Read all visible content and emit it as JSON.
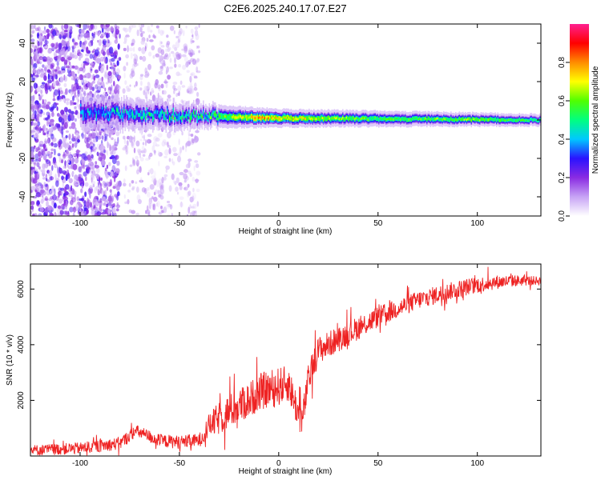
{
  "title": "C2E6.2025.240.17.07.E27",
  "chart_data": [
    {
      "type": "heatmap",
      "xlabel": "Height of straight line (km)",
      "ylabel": "Frequency (Hz)",
      "xlim": [
        -125,
        132
      ],
      "ylim": [
        -50,
        50
      ],
      "xticks": [
        -100,
        -50,
        0,
        50,
        100
      ],
      "xtick_labels": [
        "-100",
        "-50",
        "0",
        "50",
        "100"
      ],
      "yticks": [
        -40,
        -20,
        0,
        20,
        40
      ],
      "ytick_labels": [
        "-40",
        "-20",
        "0",
        "20",
        "40"
      ],
      "colorbar": {
        "label": "Normalized spectral amplitude",
        "range": [
          0,
          1
        ],
        "ticks": [
          0,
          0.2,
          0.4,
          0.6,
          0.8
        ],
        "tick_labels": [
          "0.0",
          "0.2",
          "0.4",
          "0.6",
          "0.8"
        ],
        "colormap": [
          "#ffffff",
          "#c7a3f5",
          "#8a2be2",
          "#2a12ff",
          "#00c8ff",
          "#00ff80",
          "#50ff00",
          "#ffff00",
          "#ff8c00",
          "#ff0000",
          "#ff2090"
        ]
      },
      "regions": [
        {
          "name": "broadband noise",
          "x_range": [
            -125,
            -80
          ],
          "freq_range": [
            -50,
            50
          ],
          "amplitude": 0.15
        },
        {
          "name": "sparse noise",
          "x_range": [
            -78,
            -40
          ],
          "freq_range": [
            -50,
            50
          ],
          "amplitude": 0.08
        },
        {
          "name": "narrowband signal",
          "x_range": [
            -100,
            132
          ],
          "center_freq": [
            [
              -100,
              4
            ],
            [
              -40,
              2
            ],
            [
              0,
              1
            ],
            [
              132,
              0
            ]
          ],
          "half_width_hz": [
            [
              -100,
              6
            ],
            [
              -40,
              4
            ],
            [
              0,
              3
            ],
            [
              132,
              2
            ]
          ],
          "amplitude": [
            [
              -100,
              0.35
            ],
            [
              -40,
              0.45
            ],
            [
              -10,
              0.75
            ],
            [
              50,
              0.55
            ],
            [
              100,
              0.6
            ],
            [
              132,
              0.5
            ]
          ]
        }
      ]
    },
    {
      "type": "line",
      "xlabel": "Height of straight line (km)",
      "ylabel": "SNR (10 * v/v)",
      "xlim": [
        -125,
        132
      ],
      "ylim": [
        0,
        6900
      ],
      "xticks": [
        -100,
        -50,
        0,
        50,
        100
      ],
      "xtick_labels": [
        "-100",
        "-50",
        "0",
        "50",
        "100"
      ],
      "yticks": [
        2000,
        4000,
        6000
      ],
      "ytick_labels": [
        "2000",
        "4000",
        "6000"
      ],
      "color": "#ee2222",
      "trend": {
        "x": [
          -125,
          -100,
          -80,
          -72,
          -60,
          -50,
          -40,
          -35,
          -25,
          -15,
          -10,
          -5,
          0,
          5,
          10,
          12,
          15,
          20,
          30,
          40,
          50,
          60,
          70,
          80,
          90,
          100,
          110,
          120,
          132
        ],
        "y": [
          200,
          280,
          450,
          900,
          550,
          500,
          560,
          1100,
          1600,
          2000,
          2300,
          2400,
          2500,
          2600,
          1500,
          1300,
          2800,
          3800,
          4200,
          4600,
          5000,
          5300,
          5600,
          5800,
          6000,
          6150,
          6250,
          6300,
          6300
        ],
        "noise_amplitude": [
          [
            -125,
            200
          ],
          [
            -40,
            250
          ],
          [
            -30,
            600
          ],
          [
            0,
            700
          ],
          [
            20,
            500
          ],
          [
            60,
            350
          ],
          [
            100,
            300
          ],
          [
            132,
            150
          ]
        ]
      }
    }
  ]
}
